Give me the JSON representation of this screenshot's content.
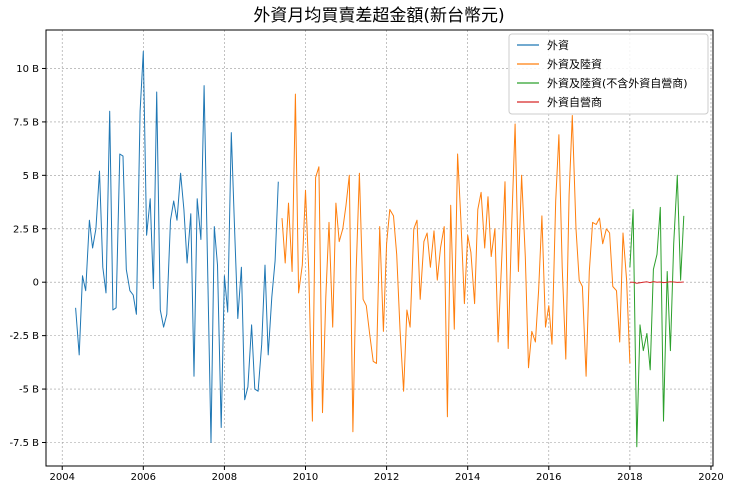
{
  "chart_data": {
    "type": "line",
    "title": "外資月均買賣差超金額(新台幣元)",
    "xlabel": "",
    "ylabel": "",
    "xlim": [
      2003.6,
      2020.05
    ],
    "ylim": [
      -8.6,
      11.8
    ],
    "x_ticks": [
      2004,
      2006,
      2008,
      2010,
      2012,
      2014,
      2016,
      2018,
      2020
    ],
    "y_ticks": [
      {
        "value": -7.5,
        "label": "-7.5 B"
      },
      {
        "value": -5,
        "label": "-5 B"
      },
      {
        "value": -2.5,
        "label": "-2.5 B"
      },
      {
        "value": 0,
        "label": "0"
      },
      {
        "value": 2.5,
        "label": "2.5 B"
      },
      {
        "value": 5,
        "label": "5 B"
      },
      {
        "value": 7.5,
        "label": "7.5 B"
      },
      {
        "value": 10,
        "label": "10 B"
      }
    ],
    "grid": true,
    "legend_position": "top-right",
    "series": [
      {
        "name": "外資",
        "color": "#1f77b4",
        "x": [
          2004.33,
          2004.42,
          2004.5,
          2004.58,
          2004.67,
          2004.75,
          2004.83,
          2004.92,
          2005.0,
          2005.08,
          2005.17,
          2005.25,
          2005.33,
          2005.42,
          2005.5,
          2005.58,
          2005.67,
          2005.75,
          2005.83,
          2005.92,
          2006.0,
          2006.08,
          2006.17,
          2006.25,
          2006.33,
          2006.42,
          2006.5,
          2006.58,
          2006.67,
          2006.75,
          2006.83,
          2006.92,
          2007.0,
          2007.08,
          2007.17,
          2007.25,
          2007.33,
          2007.42,
          2007.5,
          2007.58,
          2007.67,
          2007.75,
          2007.83,
          2007.92,
          2008.0,
          2008.08,
          2008.17,
          2008.25,
          2008.33,
          2008.42,
          2008.5,
          2008.58,
          2008.67,
          2008.75,
          2008.83,
          2008.92,
          2009.0,
          2009.08,
          2009.17,
          2009.25,
          2009.33
        ],
        "values": [
          -1.2,
          -3.4,
          0.3,
          -0.4,
          2.9,
          1.6,
          2.5,
          5.2,
          0.7,
          -0.5,
          8.0,
          -1.3,
          -1.2,
          6.0,
          5.9,
          0.6,
          -0.4,
          -0.6,
          -1.5,
          8.0,
          10.8,
          2.2,
          3.9,
          -0.3,
          8.9,
          -1.3,
          -2.1,
          -1.5,
          2.9,
          3.8,
          2.9,
          5.1,
          3.4,
          0.9,
          3.2,
          -4.4,
          3.9,
          2.0,
          9.2,
          1.2,
          -7.5,
          2.6,
          0.8,
          -6.8,
          0.3,
          -1.4,
          7.0,
          2.6,
          -1.7,
          0.7,
          -5.5,
          -4.9,
          -2.0,
          -5.0,
          -5.1,
          -2.9,
          0.8,
          -3.4,
          -0.7,
          1.0,
          4.7
        ]
      },
      {
        "name": "外資及陸資",
        "color": "#ff7f0e",
        "x": [
          2009.42,
          2009.5,
          2009.58,
          2009.67,
          2009.75,
          2009.83,
          2009.92,
          2010.0,
          2010.08,
          2010.17,
          2010.25,
          2010.33,
          2010.42,
          2010.5,
          2010.58,
          2010.67,
          2010.75,
          2010.83,
          2010.92,
          2011.0,
          2011.08,
          2011.17,
          2011.25,
          2011.33,
          2011.42,
          2011.5,
          2011.58,
          2011.67,
          2011.75,
          2011.83,
          2011.92,
          2012.0,
          2012.08,
          2012.17,
          2012.25,
          2012.33,
          2012.42,
          2012.5,
          2012.58,
          2012.67,
          2012.75,
          2012.83,
          2012.92,
          2013.0,
          2013.08,
          2013.17,
          2013.25,
          2013.33,
          2013.42,
          2013.5,
          2013.58,
          2013.67,
          2013.75,
          2013.83,
          2013.92,
          2014.0,
          2014.08,
          2014.17,
          2014.25,
          2014.33,
          2014.42,
          2014.5,
          2014.58,
          2014.67,
          2014.75,
          2014.83,
          2014.92,
          2015.0,
          2015.08,
          2015.17,
          2015.25,
          2015.33,
          2015.42,
          2015.5,
          2015.58,
          2015.67,
          2015.75,
          2015.83,
          2015.92,
          2016.0,
          2016.08,
          2016.17,
          2016.25,
          2016.33,
          2016.42,
          2016.5,
          2016.58,
          2016.67,
          2016.75,
          2016.83,
          2016.92,
          2017.0,
          2017.08,
          2017.17,
          2017.25,
          2017.33,
          2017.42,
          2017.5,
          2017.58,
          2017.67,
          2017.75,
          2017.83,
          2017.92,
          2018.0
        ],
        "values": [
          3.0,
          0.9,
          3.7,
          0.5,
          8.8,
          -0.5,
          0.8,
          4.3,
          0.6,
          -6.5,
          4.9,
          5.4,
          -6.1,
          -0.7,
          2.8,
          -2.1,
          3.7,
          1.9,
          2.5,
          3.6,
          5.0,
          -7.0,
          0.6,
          5.1,
          -0.8,
          -1.1,
          -2.4,
          -3.7,
          -3.8,
          2.6,
          -2.3,
          1.8,
          3.4,
          3.1,
          1.3,
          -2.2,
          -5.1,
          -1.3,
          -2.1,
          2.5,
          2.9,
          -0.8,
          1.9,
          2.3,
          0.7,
          2.4,
          0.1,
          1.6,
          2.6,
          -6.3,
          3.6,
          -2.2,
          6.0,
          3.0,
          -1.0,
          2.2,
          1.4,
          -1.0,
          3.4,
          4.2,
          1.6,
          4.0,
          1.2,
          2.5,
          -2.8,
          0.6,
          4.7,
          -3.1,
          2.4,
          7.4,
          0.5,
          5.0,
          1.2,
          -4.0,
          -2.3,
          -2.8,
          -0.4,
          3.1,
          -2.1,
          -1.1,
          -2.9,
          3.8,
          6.9,
          0.7,
          -3.6,
          4.1,
          7.8,
          2.5,
          0.1,
          -0.2,
          -4.4,
          0.5,
          2.8,
          2.7,
          3.0,
          1.8,
          2.5,
          2.3,
          -0.2,
          -0.4,
          -2.8,
          2.3,
          0.1,
          -3.8
        ]
      },
      {
        "name": "外資及陸資(不含外資自營商)",
        "color": "#2ca02c",
        "x": [
          2018.0,
          2018.08,
          2018.17,
          2018.25,
          2018.33,
          2018.42,
          2018.5,
          2018.58,
          2018.67,
          2018.75,
          2018.83,
          2018.92,
          2019.0,
          2019.08,
          2019.17,
          2019.25,
          2019.33
        ],
        "values": [
          0.7,
          3.4,
          -7.7,
          -2.0,
          -3.2,
          -2.4,
          -4.1,
          0.6,
          1.3,
          3.5,
          -6.5,
          0.5,
          -3.2,
          1.8,
          5.0,
          0.1,
          3.1
        ]
      },
      {
        "name": "外資自營商",
        "color": "#d62728",
        "x": [
          2018.0,
          2018.08,
          2018.17,
          2018.25,
          2018.33,
          2018.42,
          2018.5,
          2018.58,
          2018.67,
          2018.75,
          2018.83,
          2018.92,
          2019.0,
          2019.08,
          2019.17,
          2019.25,
          2019.33
        ],
        "values": [
          0.0,
          0.0,
          -0.05,
          -0.03,
          0.0,
          0.02,
          -0.02,
          0.03,
          0.0,
          0.01,
          -0.02,
          0.0,
          0.02,
          0.01,
          -0.01,
          0.0,
          0.01
        ]
      }
    ]
  }
}
